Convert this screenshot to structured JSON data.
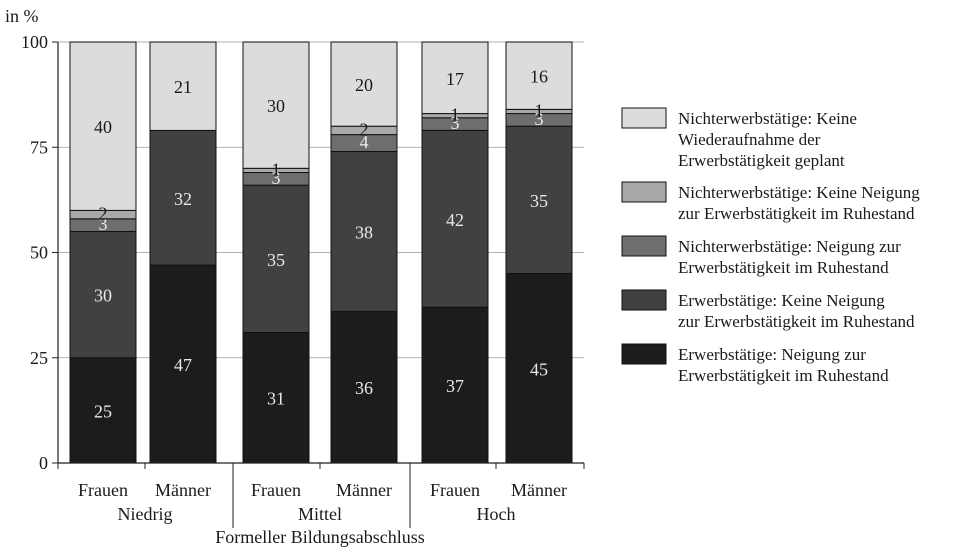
{
  "chart_data": {
    "type": "bar",
    "stacked": true,
    "unit_label": "in %",
    "xlabel": "Formeller Bildungsabschluss",
    "ylim": [
      0,
      100
    ],
    "yticks": [
      "0",
      "25",
      "50",
      "75",
      "100"
    ],
    "groups": [
      {
        "name": "Niedrig",
        "categories": [
          "Frauen",
          "Männer"
        ]
      },
      {
        "name": "Mittel",
        "categories": [
          "Frauen",
          "Männer"
        ]
      },
      {
        "name": "Hoch",
        "categories": [
          "Frauen",
          "Männer"
        ]
      }
    ],
    "categories": [
      "Frauen",
      "Männer",
      "Frauen",
      "Männer",
      "Frauen",
      "Männer"
    ],
    "series": [
      {
        "name": "Erwerbstätige: Neigung zur Erwerbstätigkeit im Ruhestand",
        "legend_lines": [
          "Erwerbstätige: Neigung zur",
          "Erwerbstätigkeit im Ruhestand"
        ],
        "color": "#1c1c1c",
        "label_color": "#e8e8e8",
        "values": [
          25,
          47,
          31,
          36,
          37,
          45
        ]
      },
      {
        "name": "Erwerbstätige: Keine Neigung zur Erwerbstätigkeit im Ruhestand",
        "legend_lines": [
          "Erwerbstätige: Keine Neigung",
          "zur Erwerbstätigkeit im Ruhestand"
        ],
        "color": "#414141",
        "label_color": "#e8e8e8",
        "values": [
          30,
          32,
          35,
          38,
          42,
          35
        ]
      },
      {
        "name": "Nichterwerbstätige: Neigung zur Erwerbstätigkeit im Ruhestand",
        "legend_lines": [
          "Nichterwerbstätige: Neigung zur",
          "Erwerbstätigkeit im Ruhestand"
        ],
        "color": "#6e6e6e",
        "label_color": "#ececec",
        "values": [
          3,
          0,
          3,
          4,
          3,
          3
        ]
      },
      {
        "name": "Nichterwerbstätige: Keine Neigung zur Erwerbstätigkeit im Ruhestand",
        "legend_lines": [
          "Nichterwerbstätige: Keine Neigung",
          "zur Erwerbstätigkeit im Ruhestand"
        ],
        "color": "#a9a9a9",
        "label_color": "#1a1a1a",
        "values": [
          2,
          0,
          1,
          2,
          1,
          1
        ]
      },
      {
        "name": "Nichterwerbstätige: Keine Wiederaufnahme der Erwerbstätigkeit geplant",
        "legend_lines": [
          "Nichterwerbstätige: Keine",
          "Wiederaufnahme der",
          "Erwerbstätigkeit geplant"
        ],
        "color": "#dcdcdc",
        "label_color": "#1a1a1a",
        "values": [
          40,
          21,
          30,
          20,
          17,
          16
        ]
      }
    ],
    "data_labels": [
      [
        "25",
        "30",
        "3",
        "2",
        "40"
      ],
      [
        "47",
        "32",
        "",
        "",
        "21"
      ],
      [
        "31",
        "35",
        "3",
        "1",
        "30"
      ],
      [
        "36",
        "38",
        "4",
        "2",
        "20"
      ],
      [
        "37",
        "42",
        "3",
        "1",
        "17"
      ],
      [
        "45",
        "35",
        "3",
        "1",
        "16"
      ]
    ],
    "legend_position": "right"
  }
}
